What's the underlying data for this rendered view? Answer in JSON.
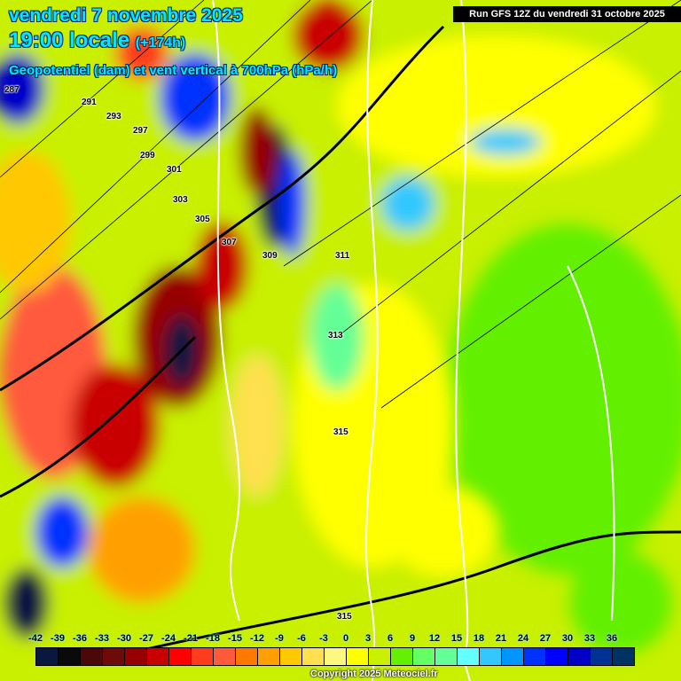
{
  "header": {
    "date": "vendredi 7 novembre 2025",
    "time": "19:00 locale",
    "lead": "(+174h)",
    "field": "Geopotentiel (dam) et vent vertical à 700hPa (hPa/h)",
    "run": "Run GFS 12Z du vendredi 31 octobre 2025"
  },
  "colorbar": {
    "ticks": [
      "-42",
      "-39",
      "-36",
      "-33",
      "-30",
      "-27",
      "-24",
      "-21",
      "-18",
      "-15",
      "-12",
      "-9",
      "-6",
      "-3",
      "0",
      "3",
      "6",
      "9",
      "12",
      "15",
      "18",
      "21",
      "24",
      "27",
      "30",
      "33",
      "36"
    ],
    "colors": [
      "#0a1840",
      "#0a0a0a",
      "#4a0808",
      "#6e0a0a",
      "#960000",
      "#c80000",
      "#ff0000",
      "#ff3c1e",
      "#ff5a3c",
      "#ff7800",
      "#ffa000",
      "#ffc800",
      "#ffe050",
      "#fff880",
      "#ffff00",
      "#c8f000",
      "#64f000",
      "#64ff64",
      "#64ff96",
      "#64ffff",
      "#32c8ff",
      "#0096ff",
      "#0032ff",
      "#0000ff",
      "#0000c8",
      "#003296",
      "#003264"
    ]
  },
  "contour_labels": [
    {
      "text": "287",
      "lon": "w"
    },
    {
      "text": "291"
    },
    {
      "text": "293"
    },
    {
      "text": "297"
    },
    {
      "text": "299"
    },
    {
      "text": "301"
    },
    {
      "text": "303"
    },
    {
      "text": "305"
    },
    {
      "text": "307"
    },
    {
      "text": "309"
    },
    {
      "text": "311"
    },
    {
      "text": "313"
    },
    {
      "text": "315"
    },
    {
      "text": "315"
    }
  ],
  "copyright": "Copyright 2025 Meteociel.fr"
}
